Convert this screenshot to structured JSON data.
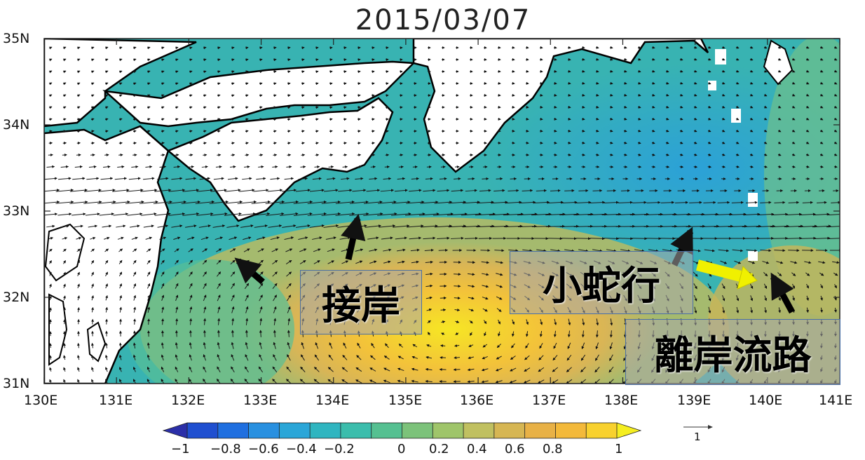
{
  "title": "2015/03/07",
  "map": {
    "lon_range": [
      130,
      141
    ],
    "lat_range": [
      31,
      35
    ],
    "x_ticks": [
      "130E",
      "131E",
      "132E",
      "133E",
      "134E",
      "135E",
      "136E",
      "137E",
      "138E",
      "139E",
      "140E",
      "141E"
    ],
    "y_ticks": [
      "35N",
      "34N",
      "33N",
      "32N",
      "31N"
    ]
  },
  "colorbar": {
    "ticks": [
      "−1",
      "−0.8",
      "−0.6",
      "−0.4",
      "−0.2",
      "0",
      "0.2",
      "0.4",
      "0.6",
      "0.8",
      "1"
    ],
    "colors": [
      "#2b2fa8",
      "#1f4fd0",
      "#1f6fe0",
      "#2890e0",
      "#2aa6d8",
      "#2fb5c0",
      "#3bbdac",
      "#55c091",
      "#7cc27a",
      "#9fc56a",
      "#c0c060",
      "#d6b653",
      "#e8b146",
      "#f3b93a",
      "#f8d12e",
      "#f5ee20"
    ]
  },
  "reference_vector": {
    "label": "1"
  },
  "annotations": [
    {
      "text": "接岸"
    },
    {
      "text": "小蛇行"
    },
    {
      "text": "離岸流路"
    }
  ],
  "colors": {
    "land": "#ffffff",
    "coast": "#000000",
    "arrow_black": "#000000",
    "arrow_yellow": "#ffff00"
  }
}
